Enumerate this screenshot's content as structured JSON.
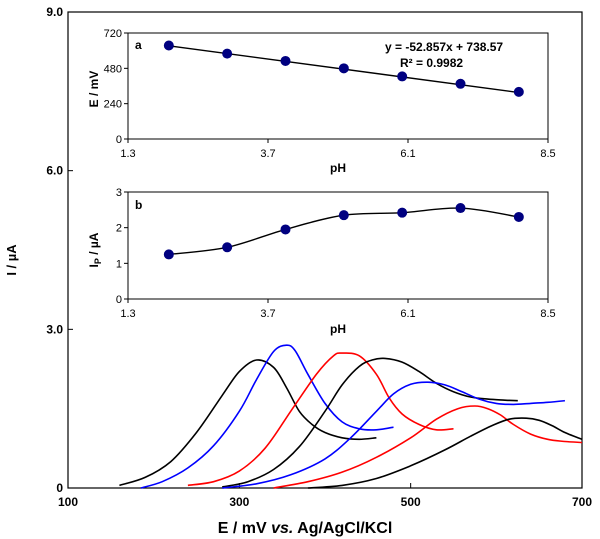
{
  "chart_data": [
    {
      "id": "main",
      "type": "line",
      "xlabel_prefix": "E / mV ",
      "xlabel_italic": "vs.",
      "xlabel_suffix": " Ag/AgCl/KCl",
      "ylabel": "I / µA",
      "xlim": [
        100,
        700
      ],
      "ylim": [
        0,
        9.0
      ],
      "xticks": [
        "100",
        "300",
        "500",
        "700"
      ],
      "yticks": [
        "0",
        "3.0",
        "6.0",
        "9.0"
      ],
      "series": [
        {
          "color": "#000000",
          "x": [
            160,
            190,
            220,
            250,
            280,
            300,
            320,
            340,
            355,
            370,
            385,
            400,
            420,
            440,
            460
          ],
          "y": [
            0.05,
            0.2,
            0.5,
            1.05,
            1.75,
            2.2,
            2.42,
            2.28,
            1.9,
            1.45,
            1.2,
            1.05,
            0.95,
            0.92,
            0.95
          ]
        },
        {
          "color": "#0000ff",
          "x": [
            185,
            210,
            240,
            270,
            300,
            320,
            340,
            355,
            365,
            380,
            400,
            420,
            440,
            460,
            480
          ],
          "y": [
            0.0,
            0.12,
            0.38,
            0.8,
            1.45,
            2.05,
            2.58,
            2.7,
            2.6,
            2.15,
            1.6,
            1.25,
            1.12,
            1.1,
            1.15
          ]
        },
        {
          "color": "#ff0000",
          "x": [
            240,
            270,
            300,
            330,
            360,
            390,
            410,
            420,
            440,
            460,
            475,
            490,
            510,
            530,
            550
          ],
          "y": [
            0.05,
            0.12,
            0.32,
            0.75,
            1.45,
            2.15,
            2.5,
            2.55,
            2.5,
            2.15,
            1.7,
            1.4,
            1.2,
            1.1,
            1.12
          ]
        },
        {
          "color": "#000000",
          "x": [
            280,
            310,
            340,
            370,
            400,
            420,
            440,
            455,
            470,
            490,
            510,
            530,
            550,
            570,
            590,
            610,
            625
          ],
          "y": [
            0.02,
            0.12,
            0.35,
            0.78,
            1.45,
            1.95,
            2.3,
            2.42,
            2.45,
            2.38,
            2.2,
            1.98,
            1.82,
            1.72,
            1.68,
            1.66,
            1.65
          ]
        },
        {
          "color": "#0000ff",
          "x": [
            280,
            320,
            360,
            400,
            430,
            460,
            480,
            500,
            520,
            540,
            560,
            580,
            600,
            620,
            640,
            660,
            680
          ],
          "y": [
            0.0,
            0.08,
            0.25,
            0.55,
            0.95,
            1.45,
            1.78,
            1.96,
            2.0,
            1.95,
            1.82,
            1.68,
            1.6,
            1.58,
            1.6,
            1.62,
            1.65
          ]
        },
        {
          "color": "#ff0000",
          "x": [
            340,
            380,
            420,
            460,
            500,
            530,
            555,
            575,
            590,
            605,
            620,
            640,
            660,
            680,
            700
          ],
          "y": [
            0.0,
            0.12,
            0.3,
            0.58,
            0.95,
            1.3,
            1.5,
            1.55,
            1.5,
            1.38,
            1.2,
            1.02,
            0.92,
            0.88,
            0.86
          ]
        },
        {
          "color": "#000000",
          "x": [
            380,
            420,
            460,
            500,
            540,
            570,
            595,
            615,
            635,
            650,
            665,
            680,
            700
          ],
          "y": [
            0.0,
            0.05,
            0.18,
            0.42,
            0.72,
            0.98,
            1.18,
            1.3,
            1.32,
            1.28,
            1.18,
            1.05,
            0.92
          ]
        }
      ]
    },
    {
      "id": "inset-a",
      "type": "scatter",
      "panel_label": "a",
      "xlabel": "pH",
      "ylabel": "E / mV",
      "xlim": [
        1.3,
        8.5
      ],
      "ylim": [
        0,
        720
      ],
      "xticks": [
        "1.3",
        "3.7",
        "6.1",
        "8.5"
      ],
      "yticks": [
        "0",
        "240",
        "480",
        "720"
      ],
      "equation": "y = -52.857x + 738.57",
      "r2": "R² = 0.9982",
      "fit": {
        "slope": -52.857,
        "intercept": 738.57
      },
      "x": [
        2,
        3,
        4,
        5,
        6,
        7,
        8
      ],
      "y": [
        635,
        580,
        530,
        480,
        425,
        375,
        320
      ],
      "marker_color": "#000080"
    },
    {
      "id": "inset-b",
      "type": "line",
      "panel_label": "b",
      "xlabel": "pH",
      "ylabel_main": "I",
      "ylabel_sub": "P",
      "ylabel_rest": " / µA",
      "xlim": [
        1.3,
        8.5
      ],
      "ylim": [
        0,
        3
      ],
      "xticks": [
        "1.3",
        "3.7",
        "6.1",
        "8.5"
      ],
      "yticks": [
        "0",
        "1",
        "2",
        "3"
      ],
      "x": [
        2,
        3,
        4,
        5,
        6,
        7,
        8
      ],
      "y": [
        1.25,
        1.45,
        1.95,
        2.35,
        2.42,
        2.55,
        2.3
      ],
      "marker_color": "#000080"
    }
  ]
}
